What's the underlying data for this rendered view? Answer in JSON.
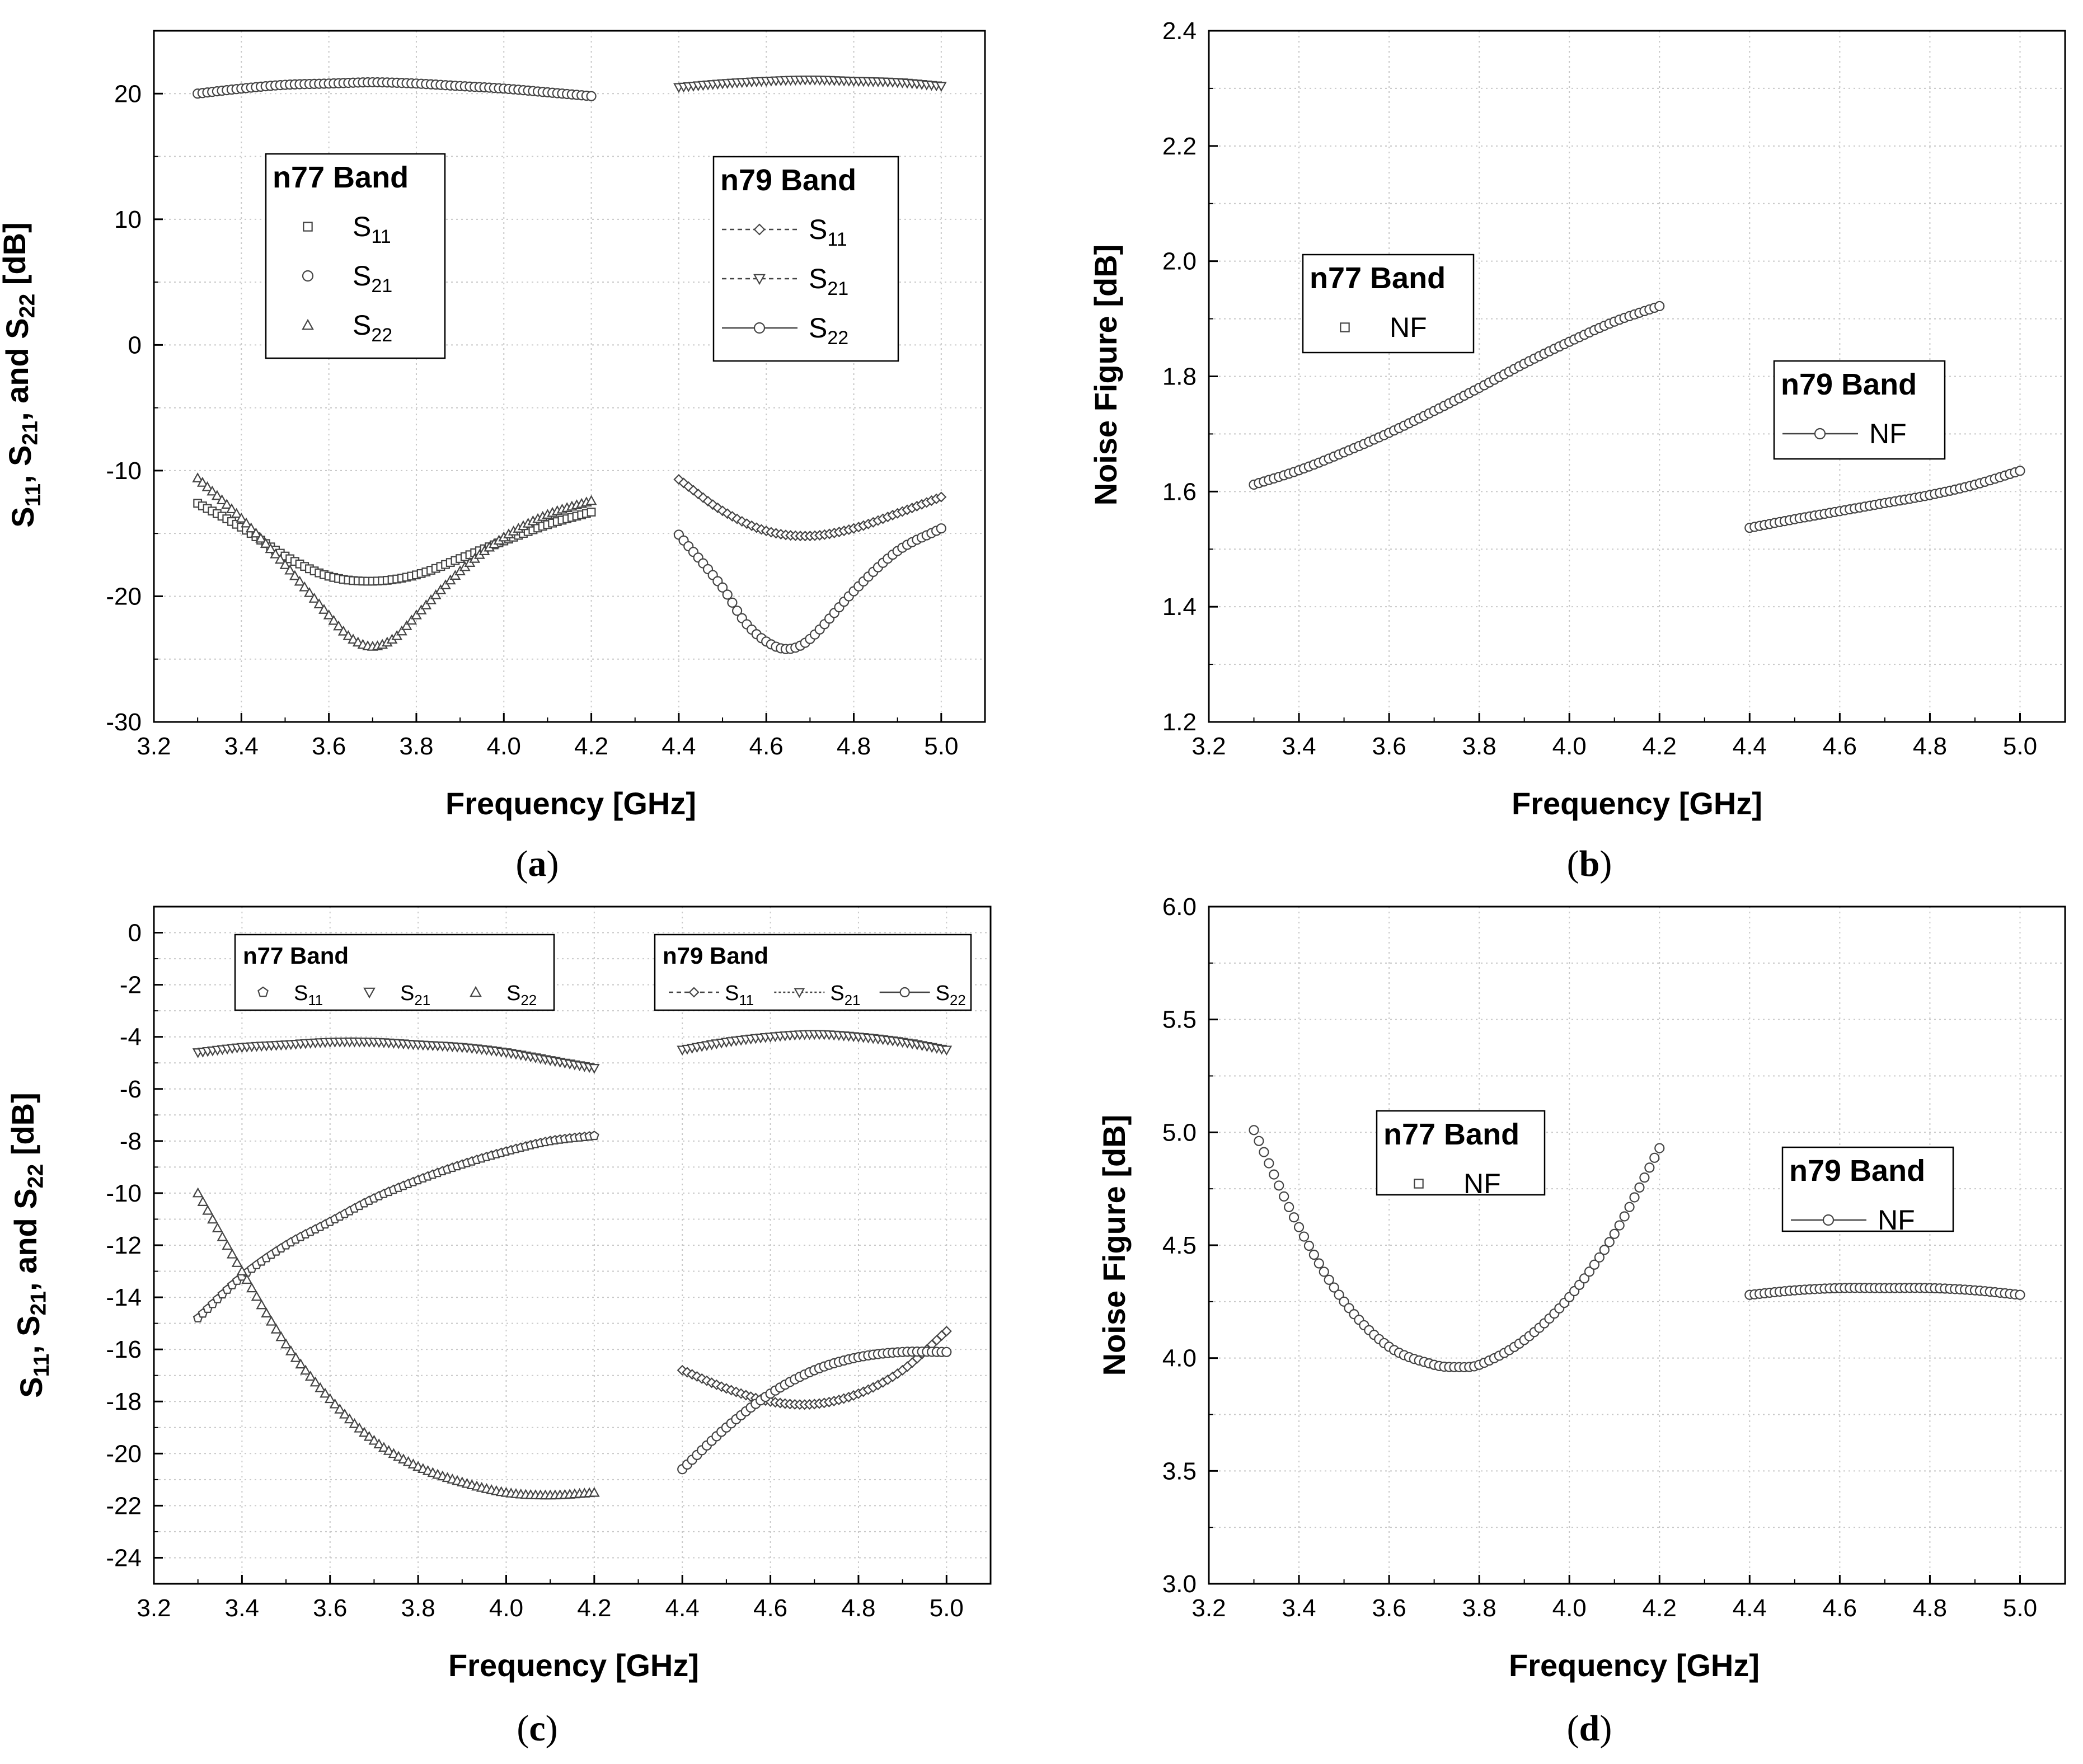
{
  "chart_data": [
    {
      "id": "a",
      "type": "scatter",
      "caption": "a",
      "xlabel": "Frequency [GHz]",
      "ylabel": [
        "S",
        "11",
        ", S",
        "21",
        ", and S",
        "22",
        " [dB]"
      ],
      "xlim": [
        3.2,
        5.1
      ],
      "ylim": [
        -30,
        25
      ],
      "xticks": [
        3.2,
        3.4,
        3.6,
        3.8,
        4.0,
        4.2,
        4.4,
        4.6,
        4.8,
        5.0
      ],
      "xtick_labels": [
        "3.2",
        "3.4",
        "3.6",
        "3.8",
        "4.0",
        "4.2",
        "4.4",
        "4.6",
        "4.8",
        "5.0"
      ],
      "yticks": [
        -30,
        -20,
        -10,
        0,
        10,
        20
      ],
      "ytick_labels": [
        "-30",
        "-20",
        "-10",
        "0",
        "10",
        "20"
      ],
      "grid_minor_y": [
        -25,
        -15,
        -5,
        5,
        15
      ],
      "legends": [
        {
          "title": "n77 Band",
          "entries": [
            {
              "label": "S",
              "sub": "11"
            },
            {
              "label": "S",
              "sub": "21"
            },
            {
              "label": "S",
              "sub": "22"
            }
          ]
        },
        {
          "title": "n79 Band",
          "entries": [
            {
              "label": "S",
              "sub": "11"
            },
            {
              "label": "S",
              "sub": "21"
            },
            {
              "label": "S",
              "sub": "22"
            }
          ]
        }
      ],
      "series": [
        {
          "name": "n77 S21",
          "marker": "circle",
          "x": [
            3.3,
            3.4,
            3.5,
            3.6,
            3.7,
            3.8,
            3.9,
            4.0,
            4.1,
            4.2
          ],
          "y": [
            20.0,
            20.4,
            20.7,
            20.8,
            20.9,
            20.8,
            20.6,
            20.4,
            20.1,
            19.8
          ]
        },
        {
          "name": "n77 S11",
          "marker": "square",
          "x": [
            3.3,
            3.4,
            3.5,
            3.6,
            3.7,
            3.8,
            3.9,
            4.0,
            4.1,
            4.2
          ],
          "y": [
            -12.6,
            -14.5,
            -16.8,
            -18.4,
            -18.8,
            -18.3,
            -17.0,
            -15.6,
            -14.3,
            -13.3
          ]
        },
        {
          "name": "n77 S22",
          "marker": "triangle",
          "x": [
            3.3,
            3.4,
            3.5,
            3.6,
            3.65,
            3.7,
            3.75,
            3.8,
            3.9,
            4.0,
            4.1,
            4.2
          ],
          "y": [
            -10.6,
            -13.8,
            -17.5,
            -21.5,
            -23.3,
            -24.0,
            -23.3,
            -21.5,
            -18.0,
            -15.3,
            -13.5,
            -12.4
          ]
        },
        {
          "name": "n79 S21",
          "marker": "triangle-down",
          "x": [
            4.4,
            4.5,
            4.6,
            4.7,
            4.8,
            4.9,
            5.0
          ],
          "y": [
            20.5,
            20.8,
            21.0,
            21.1,
            21.0,
            20.9,
            20.6
          ]
        },
        {
          "name": "n79 S11",
          "marker": "diamond",
          "x": [
            4.4,
            4.5,
            4.6,
            4.7,
            4.8,
            4.9,
            5.0
          ],
          "y": [
            -10.7,
            -13.2,
            -14.8,
            -15.2,
            -14.6,
            -13.4,
            -12.1
          ]
        },
        {
          "name": "n79 S22",
          "marker": "circle",
          "x": [
            4.4,
            4.5,
            4.55,
            4.6,
            4.65,
            4.7,
            4.8,
            4.9,
            5.0
          ],
          "y": [
            -15.1,
            -19.3,
            -22.0,
            -23.6,
            -24.2,
            -23.4,
            -19.6,
            -16.4,
            -14.6
          ]
        }
      ]
    },
    {
      "id": "b",
      "type": "scatter",
      "caption": "b",
      "xlabel": "Frequency [GHz]",
      "ylabel": [
        "Noise Figure [dB]"
      ],
      "xlim": [
        3.2,
        5.1
      ],
      "ylim": [
        1.2,
        2.4
      ],
      "xticks": [
        3.2,
        3.4,
        3.6,
        3.8,
        4.0,
        4.2,
        4.4,
        4.6,
        4.8,
        5.0
      ],
      "xtick_labels": [
        "3.2",
        "3.4",
        "3.6",
        "3.8",
        "4.0",
        "4.2",
        "4.4",
        "4.6",
        "4.8",
        "5.0"
      ],
      "yticks": [
        1.2,
        1.4,
        1.6,
        1.8,
        2.0,
        2.2,
        2.4
      ],
      "ytick_labels": [
        "1.2",
        "1.4",
        "1.6",
        "1.8",
        "2.0",
        "2.2",
        "2.4"
      ],
      "grid_minor_y": [
        1.3,
        1.5,
        1.7,
        1.9,
        2.1,
        2.3
      ],
      "legends": [
        {
          "title": "n77 Band",
          "entries": [
            {
              "label": "NF",
              "sub": ""
            }
          ]
        },
        {
          "title": "n79 Band",
          "entries": [
            {
              "label": "NF",
              "sub": ""
            }
          ]
        }
      ],
      "series": [
        {
          "name": "n77 NF",
          "marker": "circle",
          "x": [
            3.3,
            3.4,
            3.5,
            3.6,
            3.7,
            3.8,
            3.9,
            4.0,
            4.1,
            4.2
          ],
          "y": [
            1.612,
            1.637,
            1.668,
            1.702,
            1.74,
            1.78,
            1.822,
            1.86,
            1.895,
            1.922
          ]
        },
        {
          "name": "n79 NF",
          "marker": "circle",
          "x": [
            4.4,
            4.5,
            4.6,
            4.7,
            4.8,
            4.9,
            5.0
          ],
          "y": [
            1.537,
            1.552,
            1.566,
            1.58,
            1.594,
            1.612,
            1.636
          ]
        }
      ]
    },
    {
      "id": "c",
      "type": "scatter",
      "caption": "c",
      "xlabel": "Frequency [GHz]",
      "ylabel": [
        "S",
        "11",
        ", S",
        "21",
        ", and S",
        "22",
        " [dB]"
      ],
      "xlim": [
        3.2,
        5.1
      ],
      "ylim": [
        -25,
        1
      ],
      "xticks": [
        3.2,
        3.4,
        3.6,
        3.8,
        4.0,
        4.2,
        4.4,
        4.6,
        4.8,
        5.0
      ],
      "xtick_labels": [
        "3.2",
        "3.4",
        "3.6",
        "3.8",
        "4.0",
        "4.2",
        "4.4",
        "4.6",
        "4.8",
        "5.0"
      ],
      "yticks": [
        -24,
        -22,
        -20,
        -18,
        -16,
        -14,
        -12,
        -10,
        -8,
        -6,
        -4,
        -2,
        0
      ],
      "ytick_labels": [
        "-24",
        "-22",
        "-20",
        "-18",
        "-16",
        "-14",
        "-12",
        "-10",
        "-8",
        "-6",
        "-4",
        "-2",
        "0"
      ],
      "grid_minor_y": [
        -23,
        -21,
        -19,
        -17,
        -15,
        -13,
        -11,
        -9,
        -7,
        -5,
        -3,
        -1
      ],
      "legends": [
        {
          "title": "n77 Band",
          "entries": [
            {
              "label": "S",
              "sub": "11"
            },
            {
              "label": "S",
              "sub": "21"
            },
            {
              "label": "S",
              "sub": "22"
            }
          ]
        },
        {
          "title": "n79 Band",
          "entries": [
            {
              "label": "S",
              "sub": "11"
            },
            {
              "label": "S",
              "sub": "21"
            },
            {
              "label": "S",
              "sub": "22"
            }
          ]
        }
      ],
      "series": [
        {
          "name": "n77 S21",
          "marker": "triangle-down",
          "x": [
            3.3,
            3.4,
            3.5,
            3.6,
            3.7,
            3.8,
            3.9,
            4.0,
            4.1,
            4.2
          ],
          "y": [
            -4.6,
            -4.4,
            -4.3,
            -4.2,
            -4.2,
            -4.3,
            -4.4,
            -4.6,
            -4.9,
            -5.2
          ]
        },
        {
          "name": "n77 S11",
          "marker": "pentagon",
          "x": [
            3.3,
            3.4,
            3.5,
            3.6,
            3.7,
            3.8,
            3.9,
            4.0,
            4.1,
            4.2
          ],
          "y": [
            -14.8,
            -13.2,
            -12.0,
            -11.1,
            -10.2,
            -9.5,
            -8.9,
            -8.4,
            -8.0,
            -7.8
          ]
        },
        {
          "name": "n77 S22",
          "marker": "triangle",
          "x": [
            3.3,
            3.4,
            3.5,
            3.6,
            3.7,
            3.8,
            3.9,
            4.0,
            4.1,
            4.2
          ],
          "y": [
            -10.0,
            -13.0,
            -15.8,
            -17.9,
            -19.5,
            -20.5,
            -21.1,
            -21.5,
            -21.6,
            -21.5
          ]
        },
        {
          "name": "n79 S21",
          "marker": "triangle-down",
          "x": [
            4.4,
            4.5,
            4.6,
            4.7,
            4.8,
            4.9,
            5.0
          ],
          "y": [
            -4.5,
            -4.2,
            -4.0,
            -3.9,
            -4.0,
            -4.2,
            -4.5
          ]
        },
        {
          "name": "n79 S11",
          "marker": "diamond",
          "x": [
            4.4,
            4.5,
            4.6,
            4.7,
            4.8,
            4.9,
            5.0
          ],
          "y": [
            -16.8,
            -17.5,
            -18.0,
            -18.1,
            -17.7,
            -16.8,
            -15.3
          ]
        },
        {
          "name": "n79 S22",
          "marker": "circle",
          "x": [
            4.4,
            4.5,
            4.6,
            4.7,
            4.8,
            4.9,
            5.0
          ],
          "y": [
            -20.6,
            -19.0,
            -17.7,
            -16.8,
            -16.3,
            -16.1,
            -16.1
          ]
        }
      ]
    },
    {
      "id": "d",
      "type": "scatter",
      "caption": "d",
      "xlabel": "Frequency [GHz]",
      "ylabel": [
        "Noise Figure [dB]"
      ],
      "xlim": [
        3.2,
        5.1
      ],
      "ylim": [
        3.0,
        6.0
      ],
      "xticks": [
        3.2,
        3.4,
        3.6,
        3.8,
        4.0,
        4.2,
        4.4,
        4.6,
        4.8,
        5.0
      ],
      "xtick_labels": [
        "3.2",
        "3.4",
        "3.6",
        "3.8",
        "4.0",
        "4.2",
        "4.4",
        "4.6",
        "4.8",
        "5.0"
      ],
      "yticks": [
        3.0,
        3.5,
        4.0,
        4.5,
        5.0,
        5.5,
        6.0
      ],
      "ytick_labels": [
        "3.0",
        "3.5",
        "4.0",
        "4.5",
        "5.0",
        "5.5",
        "6.0"
      ],
      "grid_minor_y": [
        3.25,
        3.75,
        4.25,
        4.75,
        5.25,
        5.75
      ],
      "legends": [
        {
          "title": "n77 Band",
          "entries": [
            {
              "label": "NF",
              "sub": ""
            }
          ]
        },
        {
          "title": "n79 Band",
          "entries": [
            {
              "label": "NF",
              "sub": ""
            }
          ]
        }
      ],
      "series": [
        {
          "name": "n77 NF",
          "marker": "circle",
          "x": [
            3.3,
            3.4,
            3.5,
            3.6,
            3.7,
            3.75,
            3.8,
            3.9,
            4.0,
            4.1,
            4.2
          ],
          "y": [
            5.01,
            4.58,
            4.25,
            4.05,
            3.97,
            3.96,
            3.97,
            4.08,
            4.27,
            4.55,
            4.93
          ]
        },
        {
          "name": "n79 NF",
          "marker": "circle",
          "x": [
            4.4,
            4.5,
            4.6,
            4.7,
            4.8,
            4.9,
            5.0
          ],
          "y": [
            4.28,
            4.3,
            4.31,
            4.31,
            4.31,
            4.3,
            4.28
          ]
        }
      ]
    }
  ]
}
